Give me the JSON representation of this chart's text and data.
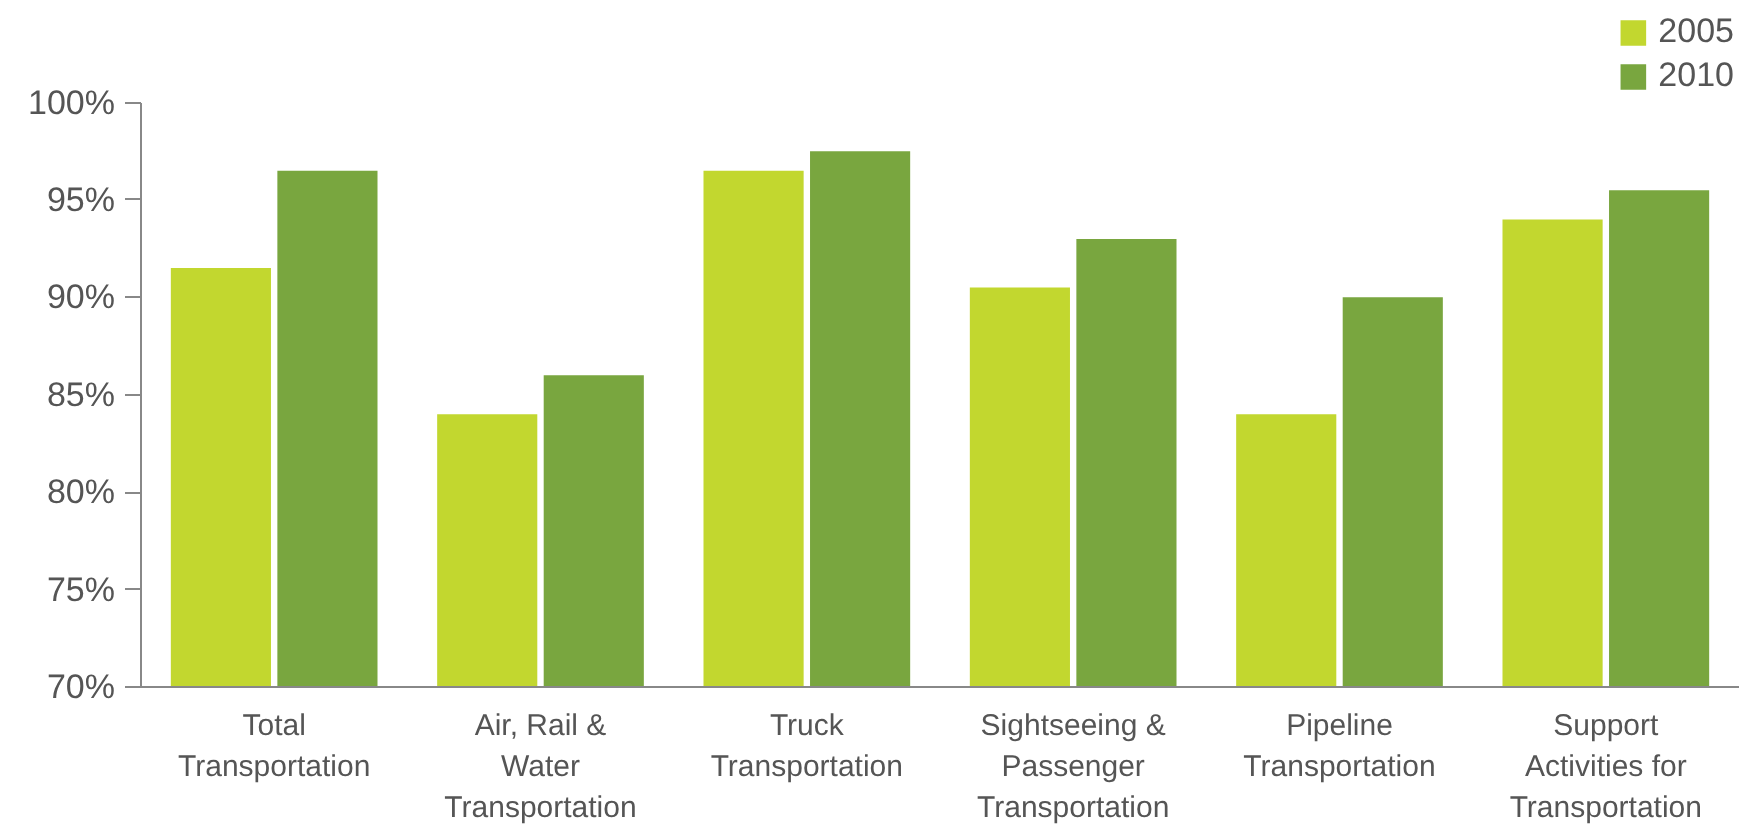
{
  "chart_data": {
    "type": "bar",
    "categories": [
      "Total Transportation",
      "Air, Rail & Water Transportation",
      "Truck Transportation",
      "Sightseeing & Passenger Transportation",
      "Pipeline Transportation",
      "Support Activities for Transportation"
    ],
    "series": [
      {
        "name": "2005",
        "color": "#c2d72f",
        "values": [
          91.5,
          84,
          96.5,
          90.5,
          84,
          94
        ]
      },
      {
        "name": "2010",
        "color": "#79a63f",
        "values": [
          96.5,
          86,
          97.5,
          93,
          90,
          95.5
        ]
      }
    ],
    "ylim": [
      70,
      100
    ],
    "yticks": [
      {
        "value": 70,
        "label": "70%"
      },
      {
        "value": 75,
        "label": "75%"
      },
      {
        "value": 80,
        "label": "80%"
      },
      {
        "value": 85,
        "label": "85%"
      },
      {
        "value": 90,
        "label": "90%"
      },
      {
        "value": 95,
        "label": "95%"
      },
      {
        "value": 100,
        "label": "100%"
      }
    ],
    "grid": false,
    "legend": "top right"
  }
}
